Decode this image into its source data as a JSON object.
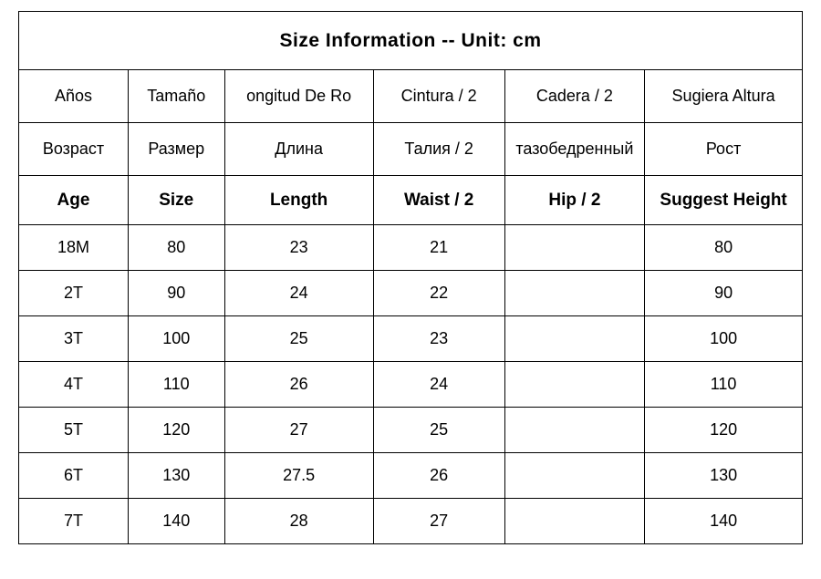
{
  "title": "Size  Information -- Unit: cm",
  "table": {
    "columns": [
      "age",
      "size",
      "length",
      "waist",
      "hip",
      "suggest_height"
    ],
    "col_widths_pct": [
      12.5,
      11,
      17,
      15,
      16,
      18
    ],
    "border_color": "#000000",
    "background_color": "#ffffff",
    "text_color": "#000000",
    "title_fontsize": 21,
    "header_fontsize": 18,
    "header_en_fontsize": 19,
    "data_fontsize": 18,
    "row_height_title": 64,
    "row_height_header": 58,
    "row_height_header_en": 54,
    "row_height_data": 50,
    "headers_es": {
      "age": "Años",
      "size": "Tamaño",
      "length": "ongitud De Ro",
      "waist": "Cintura / 2",
      "hip": "Cadera / 2",
      "suggest_height": "Sugiera Altura"
    },
    "headers_ru": {
      "age": "Возраст",
      "size": "Размер",
      "length": "Длина",
      "waist": "Талия / 2",
      "hip": "тазобедренный",
      "suggest_height": "Рост"
    },
    "headers_en": {
      "age": "Age",
      "size": "Size",
      "length": "Length",
      "waist": "Waist / 2",
      "hip": "Hip / 2",
      "suggest_height": "Suggest Height"
    },
    "rows": [
      {
        "age": "18M",
        "size": "80",
        "length": "23",
        "waist": "21",
        "hip": "",
        "suggest_height": "80"
      },
      {
        "age": "2T",
        "size": "90",
        "length": "24",
        "waist": "22",
        "hip": "",
        "suggest_height": "90"
      },
      {
        "age": "3T",
        "size": "100",
        "length": "25",
        "waist": "23",
        "hip": "",
        "suggest_height": "100"
      },
      {
        "age": "4T",
        "size": "110",
        "length": "26",
        "waist": "24",
        "hip": "",
        "suggest_height": "110"
      },
      {
        "age": "5T",
        "size": "120",
        "length": "27",
        "waist": "25",
        "hip": "",
        "suggest_height": "120"
      },
      {
        "age": "6T",
        "size": "130",
        "length": "27.5",
        "waist": "26",
        "hip": "",
        "suggest_height": "130"
      },
      {
        "age": "7T",
        "size": "140",
        "length": "28",
        "waist": "27",
        "hip": "",
        "suggest_height": "140"
      }
    ]
  }
}
